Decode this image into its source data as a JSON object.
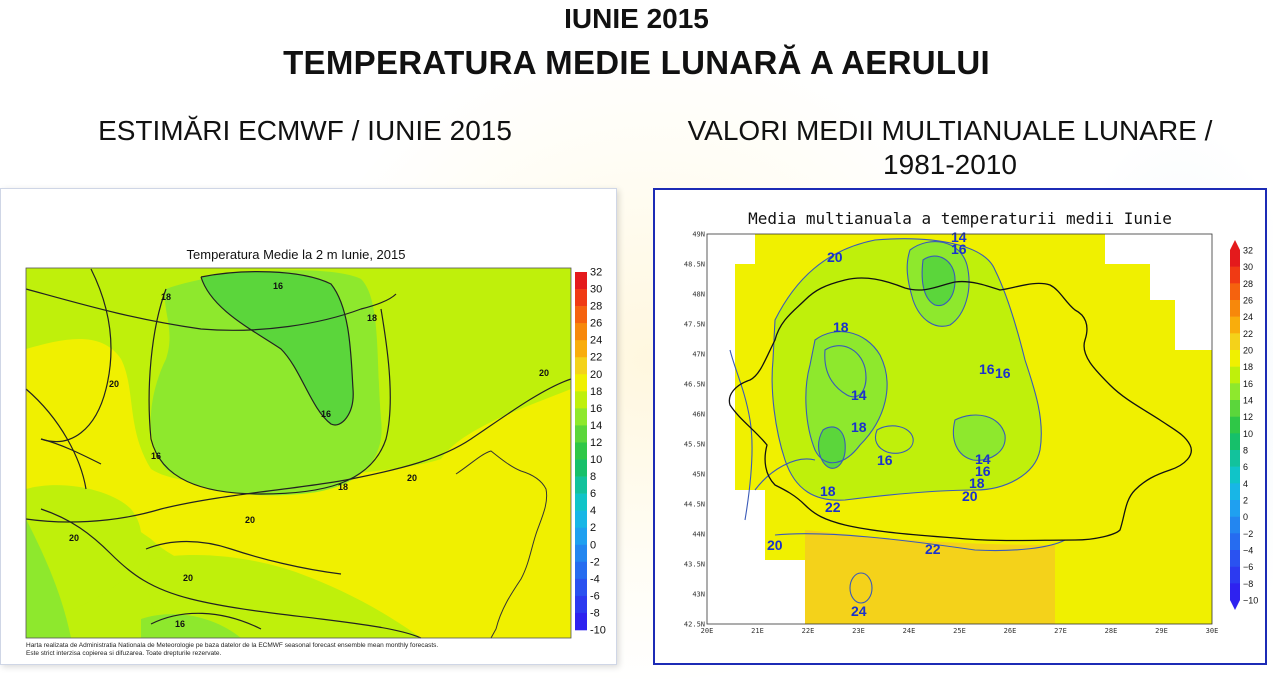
{
  "header": {
    "line1": "IUNIE 2015",
    "line2": "TEMPERATURA MEDIE LUNARĂ A AERULUI"
  },
  "left": {
    "subtitle": "ESTIMĂRI ECMWF / IUNIE 2015",
    "map_title": "Temperatura Medie la 2 m Iunie, 2015",
    "colorbar": [
      "32",
      "30",
      "28",
      "26",
      "24",
      "22",
      "20",
      "18",
      "16",
      "14",
      "12",
      "10",
      "8",
      "6",
      "4",
      "2",
      "0",
      "-2",
      "-4",
      "-6",
      "-8",
      "-10"
    ],
    "contour_labels": [
      "16",
      "18",
      "18",
      "16",
      "20",
      "20",
      "16",
      "18",
      "20",
      "20",
      "20",
      "20",
      "16"
    ],
    "footnote_line1": "Harta realizata de Administratia Nationala de Meteorologie pe baza datelor de la ECMWF seasonal forecast ensemble mean monthly forecasts.",
    "footnote_line2": "Este strict interzisa copierea si difuzarea. Toate drepturile rezervate."
  },
  "right": {
    "subtitle": "VALORI MEDII MULTIANUALE LUNARE / 1981-2010",
    "map_title": "Media multianuala a temperaturii medii Iunie",
    "colorbar": [
      "32",
      "30",
      "28",
      "26",
      "24",
      "22",
      "20",
      "18",
      "16",
      "14",
      "12",
      "10",
      "8",
      "6",
      "4",
      "2",
      "0",
      "−2",
      "−4",
      "−6",
      "−8",
      "−10"
    ],
    "y_ticks": [
      "49N",
      "48.5N",
      "48N",
      "47.5N",
      "47N",
      "46.5N",
      "46N",
      "45.5N",
      "45N",
      "44.5N",
      "44N",
      "43.5N",
      "43N",
      "42.5N"
    ],
    "x_ticks": [
      "20E",
      "21E",
      "22E",
      "23E",
      "24E",
      "25E",
      "26E",
      "27E",
      "28E",
      "29E",
      "30E"
    ],
    "contour_labels": [
      "20",
      "14",
      "16",
      "18",
      "16",
      "16",
      "14",
      "18",
      "16",
      "14",
      "16",
      "18",
      "20",
      "18",
      "22",
      "20",
      "22",
      "24"
    ]
  },
  "colors": {
    "green_light": "#bff00b",
    "green_mid": "#8ee82d",
    "green_dark": "#5bd63b",
    "yellow": "#f0f000",
    "yellow_orange": "#f4d21a",
    "contour_black": "#222222",
    "contour_blue": "#3a5ab8",
    "label_blue": "#1a33cc"
  }
}
